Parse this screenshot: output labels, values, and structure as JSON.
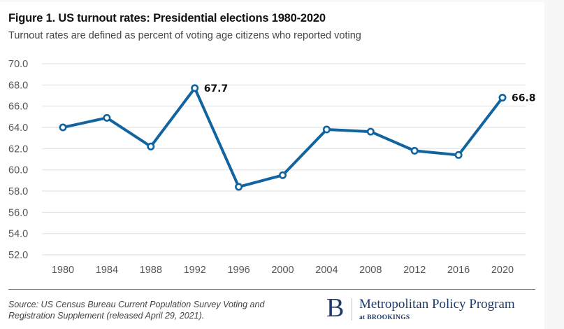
{
  "chart_data": {
    "type": "line",
    "title": "Figure 1. US turnout rates: Presidential elections 1980-2020",
    "subtitle": "Turnout rates are defined as percent of voting age citizens who reported voting",
    "xlabel": "",
    "ylabel": "",
    "categories": [
      "1980",
      "1984",
      "1988",
      "1992",
      "1996",
      "2000",
      "2004",
      "2008",
      "2012",
      "2016",
      "2020"
    ],
    "series": [
      {
        "name": "Turnout rate",
        "values": [
          64.0,
          64.9,
          62.2,
          67.7,
          58.4,
          59.5,
          63.8,
          63.6,
          61.8,
          61.4,
          66.8
        ],
        "color": "#11649f"
      }
    ],
    "ylim": [
      52.0,
      70.0
    ],
    "yticks": [
      "70.0",
      "68.0",
      "66.0",
      "64.0",
      "62.0",
      "60.0",
      "58.0",
      "56.0",
      "54.0",
      "52.0"
    ],
    "ytick_values": [
      70,
      68,
      66,
      64,
      62,
      60,
      58,
      56,
      54,
      52
    ],
    "annotations": [
      {
        "index": 3,
        "text": "67.7"
      },
      {
        "index": 10,
        "text": "66.8"
      }
    ],
    "grid": true,
    "legend": "none"
  },
  "footer": {
    "source": "Source: US Census Bureau Current Population Survey Voting and Registration Supplement (released April 29, 2021).",
    "logo_letter": "B",
    "logo_name": "Metropolitan Policy Program",
    "logo_sub": "at BROOKINGS"
  },
  "colors": {
    "line": "#11649f",
    "grid": "#e2e2e2",
    "brand": "#1d3a6b"
  }
}
